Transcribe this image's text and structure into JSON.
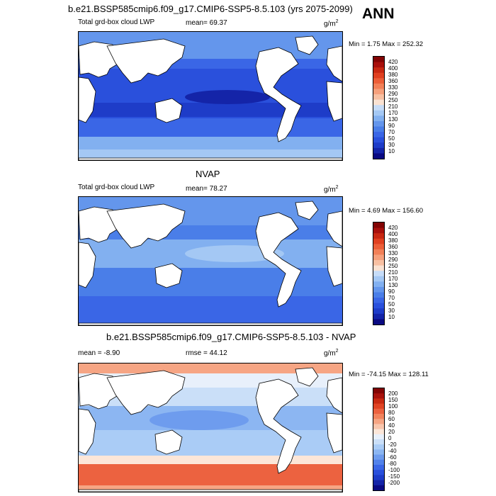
{
  "title": "b.e21.BSSP585cmip6.f09_g17.CMIP6-SSP5-8.5.103 (yrs 2075-2099)",
  "season": "ANN",
  "colors": {
    "lwp_scale": [
      "#0a0a82",
      "#1424a8",
      "#1e3cc8",
      "#2a50dc",
      "#3a66e6",
      "#4a7ee8",
      "#6496ec",
      "#82b0f0",
      "#a4c8f4",
      "#c6dcf8",
      "#fae2d2",
      "#f8c0a2",
      "#f6a07c",
      "#f28058",
      "#ec5e38",
      "#e04020",
      "#c82812",
      "#a8100c",
      "#820404"
    ],
    "diff_scale": [
      "#0a0a82",
      "#1424a8",
      "#1e3cc8",
      "#2a50dc",
      "#3a66e6",
      "#5282ea",
      "#6e9cee",
      "#8cb6f2",
      "#aaccf6",
      "#cadff8",
      "#e8f0fb",
      "#fce6d8",
      "#f9c6ad",
      "#f6a584",
      "#f2845e",
      "#ec6240",
      "#e04424",
      "#c82a12",
      "#a8120c",
      "#820404"
    ]
  },
  "chart_data": [
    {
      "type": "heatmap",
      "panel_title": "",
      "variable": "Total grd-box cloud LWP",
      "mean_text": "mean=  69.37",
      "units": "g/m",
      "units_exp": "2",
      "minmax_text": "Min =  1.75 Max = 252.32",
      "colorbar_labels": [
        "420",
        "400",
        "380",
        "360",
        "330",
        "290",
        "250",
        "210",
        "170",
        "130",
        "90",
        "70",
        "50",
        "30",
        "10"
      ],
      "min": 1.75,
      "max": 252.32,
      "mean": 69.37
    },
    {
      "type": "heatmap",
      "panel_title": "NVAP",
      "variable": "Total grd-box cloud LWP",
      "mean_text": "mean=  78.27",
      "units": "g/m",
      "units_exp": "2",
      "minmax_text": "Min =  4.69 Max = 156.60",
      "colorbar_labels": [
        "420",
        "400",
        "380",
        "360",
        "330",
        "290",
        "250",
        "210",
        "170",
        "130",
        "90",
        "70",
        "50",
        "30",
        "10"
      ],
      "min": 4.69,
      "max": 156.6,
      "mean": 78.27
    },
    {
      "type": "heatmap",
      "panel_title": "b.e21.BSSP585cmip6.f09_g17.CMIP6-SSP5-8.5.103 - NVAP",
      "mean_text": "mean =  -8.90",
      "rmse_text": "rmse =  44.12",
      "units": "g/m",
      "units_exp": "2",
      "minmax_text": "Min = -74.15 Max = 128.11",
      "colorbar_labels": [
        "200",
        "150",
        "100",
        "80",
        "60",
        "40",
        "20",
        "0",
        "-20",
        "-40",
        "-60",
        "-80",
        "-100",
        "-150",
        "-200"
      ],
      "min": -74.15,
      "max": 128.11,
      "mean": -8.9,
      "rmse": 44.12
    }
  ]
}
